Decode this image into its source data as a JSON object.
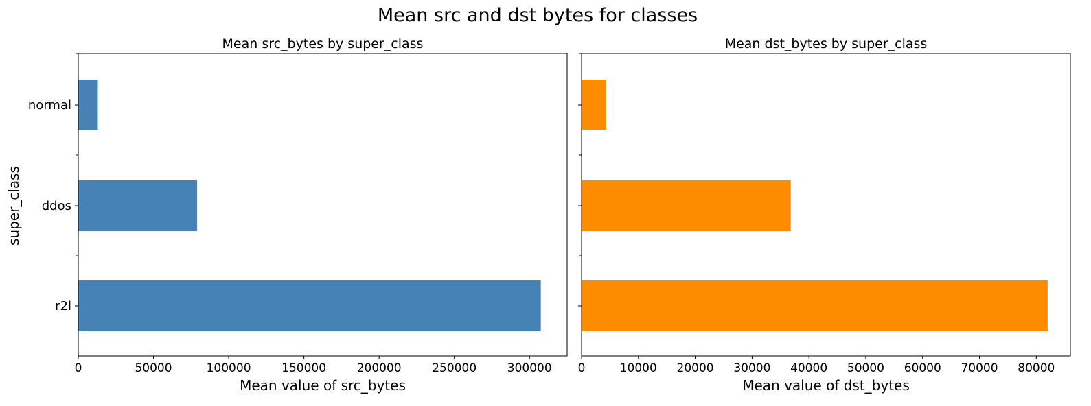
{
  "figure": {
    "title": "Mean src and dst bytes for classes"
  },
  "chart_data": [
    {
      "type": "bar",
      "orientation": "horizontal",
      "title": "Mean src_bytes by super_class",
      "xlabel": "Mean value of src_bytes",
      "ylabel": "super_class",
      "categories": [
        "normal",
        "ddos",
        "r2l"
      ],
      "values": [
        13000,
        79000,
        307500
      ],
      "xlim": [
        0,
        325000
      ],
      "xticks": [
        0,
        50000,
        100000,
        150000,
        200000,
        250000,
        300000
      ],
      "xtick_labels": [
        "0",
        "50000",
        "100000",
        "150000",
        "200000",
        "250000",
        "300000"
      ],
      "color": "#4682b4",
      "grid": false
    },
    {
      "type": "bar",
      "orientation": "horizontal",
      "title": "Mean dst_bytes by super_class",
      "xlabel": "Mean value of dst_bytes",
      "ylabel": "",
      "categories": [
        "normal",
        "ddos",
        "r2l"
      ],
      "values": [
        4300,
        36800,
        82000
      ],
      "xlim": [
        0,
        86000
      ],
      "xticks": [
        0,
        10000,
        20000,
        30000,
        40000,
        50000,
        60000,
        70000,
        80000
      ],
      "xtick_labels": [
        "0",
        "10000",
        "20000",
        "30000",
        "40000",
        "50000",
        "60000",
        "70000",
        "80000"
      ],
      "color": "#ff8c00",
      "grid": false
    }
  ]
}
